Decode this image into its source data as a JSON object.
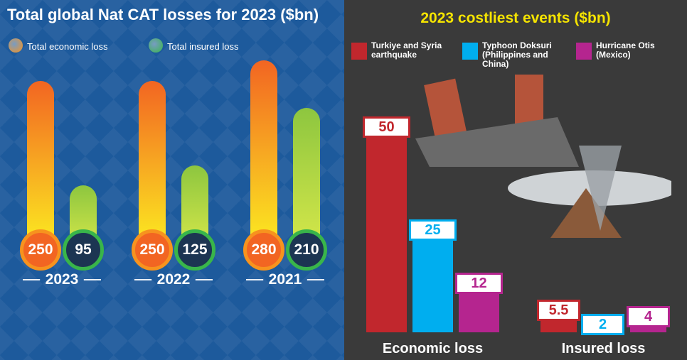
{
  "chart_data": [
    {
      "type": "thermometer",
      "title": "Total global Nat CAT losses for 2023 ($bn)",
      "categories": [
        "2023",
        "2022",
        "2021"
      ],
      "series": [
        {
          "name": "Total economic loss",
          "color": "#f7931e",
          "values": [
            250,
            250,
            280
          ]
        },
        {
          "name": "Total insured loss",
          "color": "#39b54a",
          "values": [
            95,
            125,
            210
          ]
        }
      ]
    },
    {
      "type": "bar",
      "title": "2023 costliest events ($bn)",
      "categories": [
        "Economic loss",
        "Insured loss"
      ],
      "series": [
        {
          "name": "Turkiye and Syria earthquake",
          "color": "#c1272d",
          "values": [
            50,
            5.5
          ]
        },
        {
          "name": "Typhoon Doksuri (Philippines and China)",
          "color": "#00aeef",
          "values": [
            25,
            2
          ]
        },
        {
          "name": "Hurricane Otis (Mexico)",
          "color": "#b5258f",
          "values": [
            12,
            4
          ]
        }
      ]
    }
  ]
}
